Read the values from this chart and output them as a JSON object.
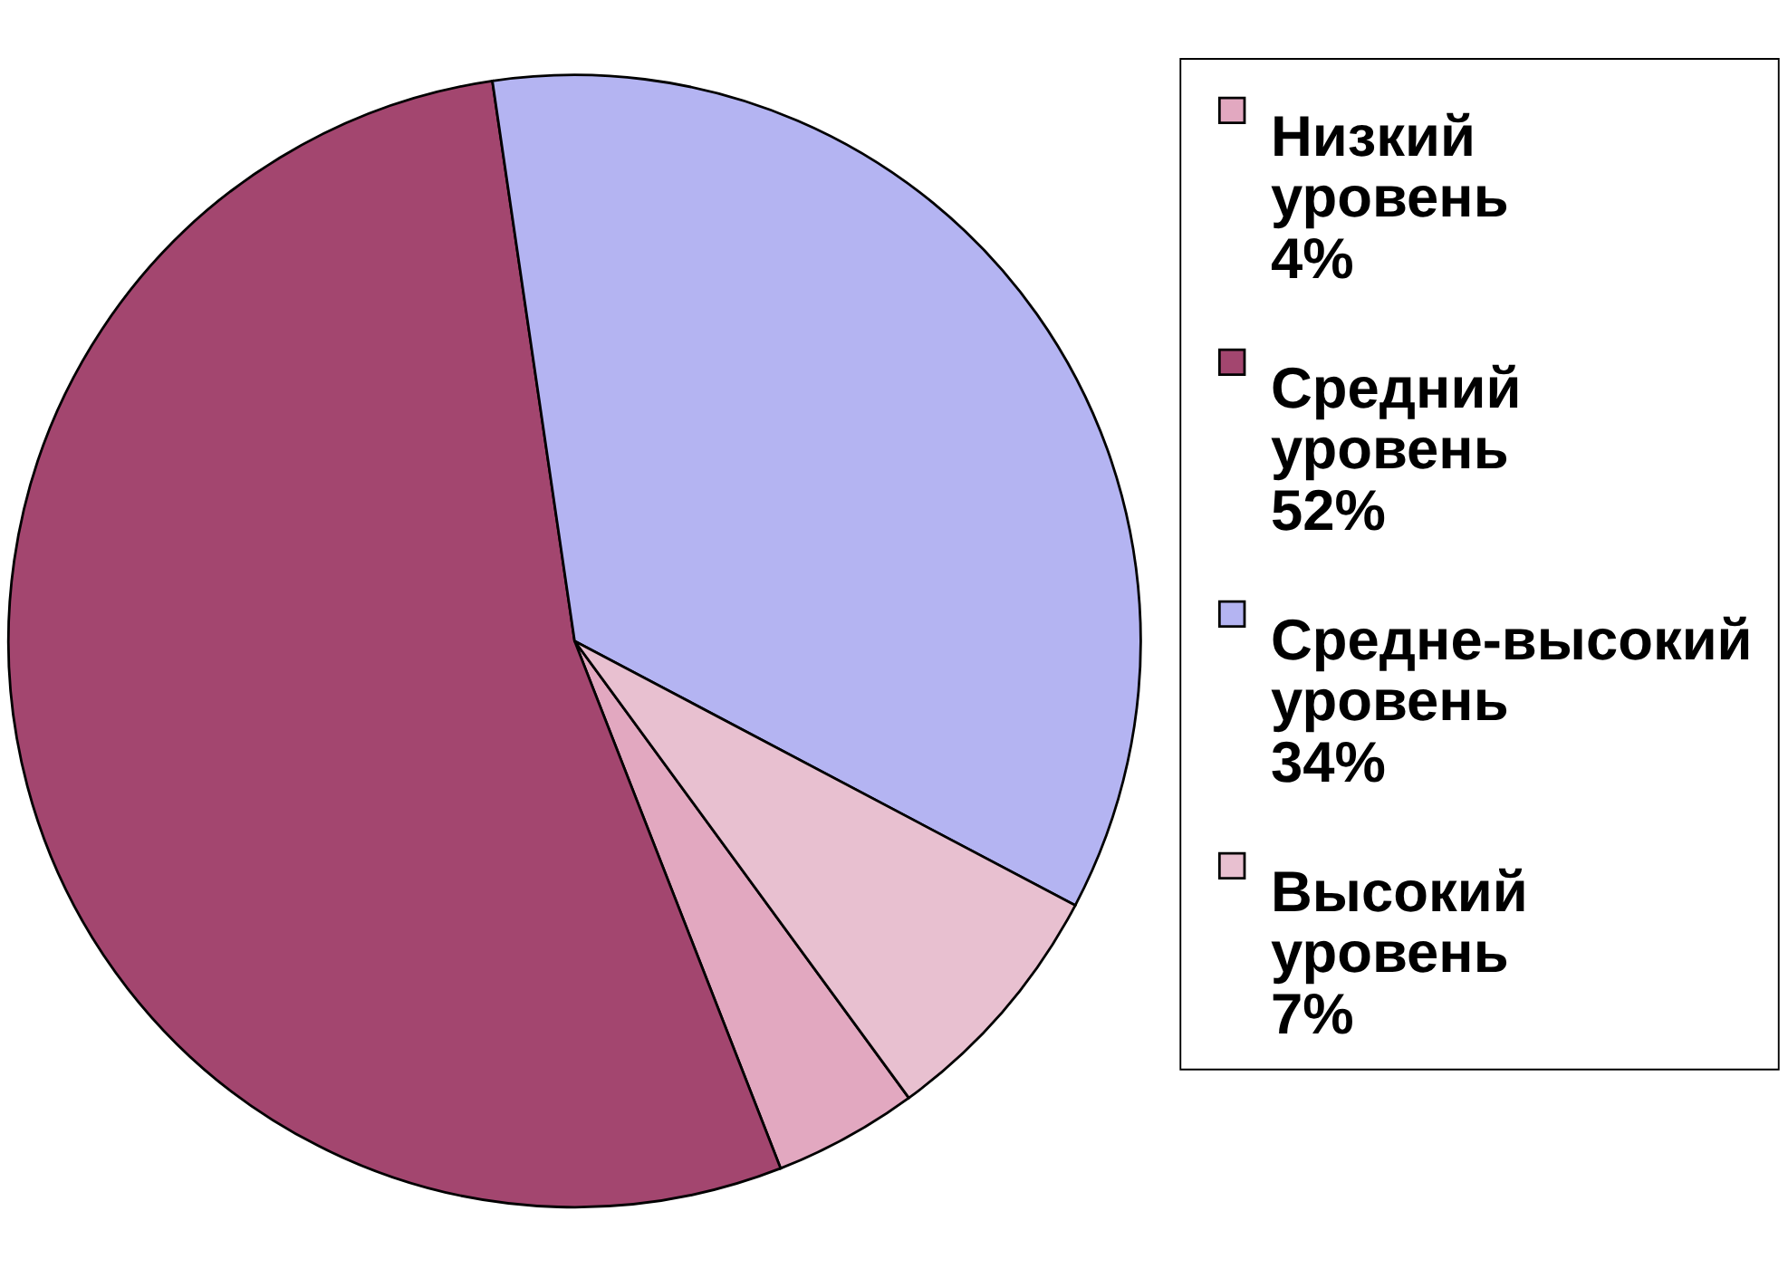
{
  "chart_data": {
    "type": "pie",
    "categories": [
      "Низкий уровень 4%",
      "Средний уровень 52%",
      "Средне-высокий уровень 34%",
      "Высокий уровень 7%"
    ],
    "values": [
      4,
      52,
      34,
      7
    ],
    "colors": [
      "#e2a8c0",
      "#a3466f",
      "#b4b4f2",
      "#e8c0d0"
    ],
    "legend": "right"
  }
}
